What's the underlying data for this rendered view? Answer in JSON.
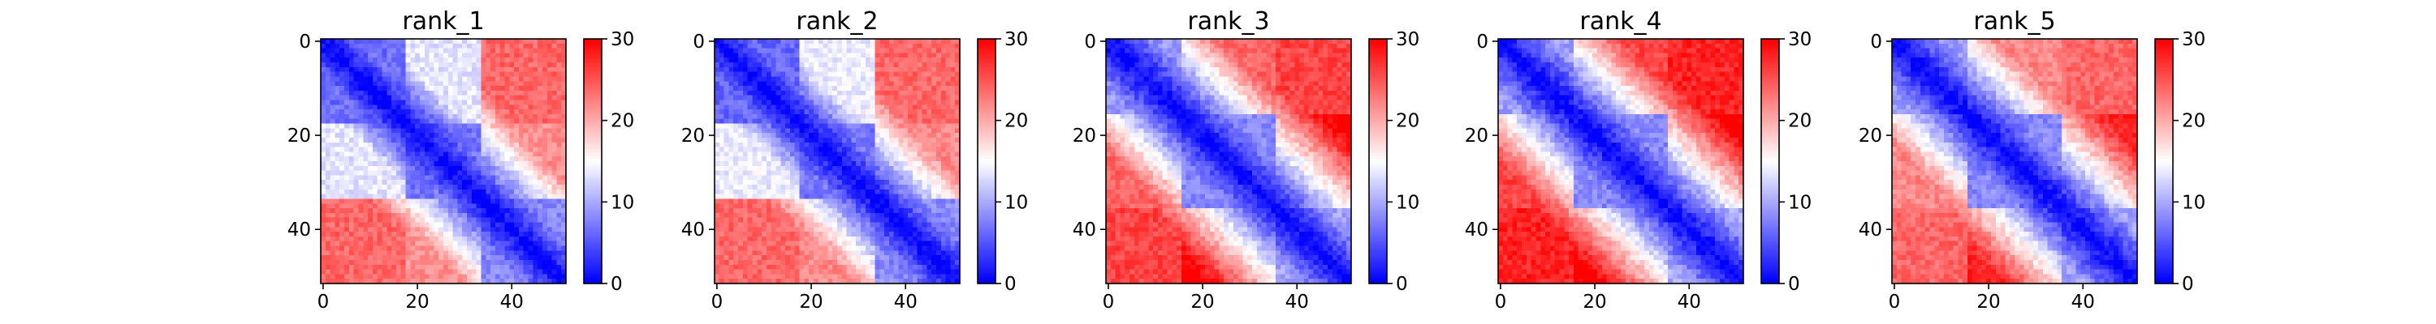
{
  "chart_data": [
    {
      "type": "heatmap",
      "title": "rank_1",
      "n": 52,
      "clim": [
        0,
        30
      ],
      "xticks": [
        0,
        20,
        40
      ],
      "yticks": [
        0,
        20,
        40
      ],
      "cbar_ticks": [
        0,
        10,
        20,
        30
      ],
      "domains": [
        [
          0,
          17
        ],
        [
          18,
          33
        ],
        [
          34,
          51
        ]
      ],
      "intra": [
        6.5,
        7.0,
        8.0
      ],
      "inter": [
        13.5,
        21.5,
        24.0
      ]
    },
    {
      "type": "heatmap",
      "title": "rank_2",
      "n": 52,
      "clim": [
        0,
        30
      ],
      "xticks": [
        0,
        20,
        40
      ],
      "yticks": [
        0,
        20,
        40
      ],
      "cbar_ticks": [
        0,
        10,
        20,
        30
      ],
      "domains": [
        [
          0,
          17
        ],
        [
          18,
          33
        ],
        [
          34,
          51
        ]
      ],
      "intra": [
        6.0,
        7.0,
        8.0
      ],
      "inter": [
        14.0,
        22.0,
        24.0
      ]
    },
    {
      "type": "heatmap",
      "title": "rank_3",
      "n": 52,
      "clim": [
        0,
        30
      ],
      "xticks": [
        0,
        20,
        40
      ],
      "yticks": [
        0,
        20,
        40
      ],
      "cbar_ticks": [
        0,
        10,
        20,
        30
      ],
      "domains": [
        [
          0,
          15
        ],
        [
          16,
          35
        ],
        [
          36,
          51
        ]
      ],
      "intra": [
        9.0,
        8.0,
        9.5
      ],
      "inter": [
        24.0,
        30.0,
        26.0
      ]
    },
    {
      "type": "heatmap",
      "title": "rank_4",
      "n": 52,
      "clim": [
        0,
        30
      ],
      "xticks": [
        0,
        20,
        40
      ],
      "yticks": [
        0,
        20,
        40
      ],
      "cbar_ticks": [
        0,
        10,
        20,
        30
      ],
      "domains": [
        [
          0,
          15
        ],
        [
          16,
          35
        ],
        [
          36,
          51
        ]
      ],
      "intra": [
        9.5,
        8.0,
        10.0
      ],
      "inter": [
        26.0,
        31.0,
        28.0
      ]
    },
    {
      "type": "heatmap",
      "title": "rank_5",
      "n": 52,
      "clim": [
        0,
        30
      ],
      "xticks": [
        0,
        20,
        40
      ],
      "yticks": [
        0,
        20,
        40
      ],
      "cbar_ticks": [
        0,
        10,
        20,
        30
      ],
      "domains": [
        [
          0,
          15
        ],
        [
          16,
          35
        ],
        [
          36,
          51
        ]
      ],
      "intra": [
        9.0,
        8.0,
        9.5
      ],
      "inter": [
        22.0,
        28.0,
        24.0
      ]
    }
  ],
  "colormap": {
    "low": "#0000ff",
    "mid": "#ffffff",
    "high": "#ff0000"
  }
}
